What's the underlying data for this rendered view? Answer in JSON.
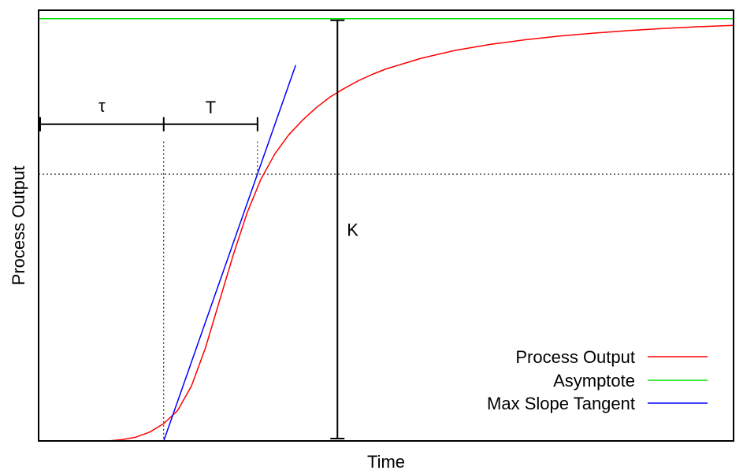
{
  "chart_data": {
    "type": "line",
    "title": "",
    "xlabel": "Time",
    "ylabel": "Process Output",
    "xlim": [
      0,
      10
    ],
    "ylim": [
      0,
      1.02
    ],
    "grid": false,
    "legend_position": "bottom-right",
    "colors": {
      "process_output": "#ff0000",
      "asymptote": "#00e000",
      "tangent": "#0000ff",
      "annotation": "#000000"
    },
    "series": [
      {
        "name": "Process Output",
        "x": [
          1.0,
          1.2,
          1.4,
          1.6,
          1.8,
          2.0,
          2.2,
          2.4,
          2.6,
          2.8,
          3.0,
          3.2,
          3.4,
          3.6,
          3.8,
          4.0,
          4.2,
          4.4,
          4.6,
          4.8,
          5.0,
          5.5,
          6.0,
          6.5,
          7.0,
          7.5,
          8.0,
          8.5,
          9.0,
          9.5,
          10.0
        ],
        "y": [
          0.0,
          0.003,
          0.009,
          0.021,
          0.041,
          0.072,
          0.13,
          0.22,
          0.33,
          0.44,
          0.54,
          0.62,
          0.68,
          0.725,
          0.76,
          0.79,
          0.815,
          0.835,
          0.853,
          0.868,
          0.881,
          0.906,
          0.925,
          0.939,
          0.95,
          0.959,
          0.966,
          0.972,
          0.977,
          0.981,
          0.984
        ]
      },
      {
        "name": "Asymptote",
        "x": [
          0,
          10
        ],
        "y": [
          1.0,
          1.0
        ]
      },
      {
        "name": "Max Slope Tangent",
        "x": [
          1.8,
          3.7
        ],
        "y": [
          0.0,
          0.89
        ]
      }
    ],
    "annotations": {
      "tau": {
        "label": "τ",
        "x_start": 0,
        "x_end": 1.8,
        "y": 0.75
      },
      "T": {
        "label": "T",
        "x_start": 1.8,
        "x_end": 3.15,
        "y": 0.75
      },
      "K": {
        "label": "K",
        "x": 4.3,
        "y_start": 0.0,
        "y_end": 1.0
      },
      "reference_y": 0.632
    }
  }
}
